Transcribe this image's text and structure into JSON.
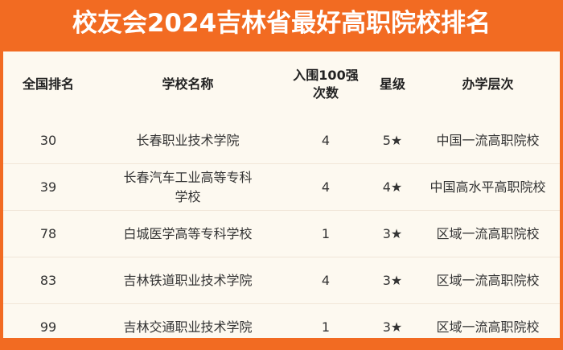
{
  "title": "校友会2024吉林省最好高职院校排名",
  "colors": {
    "header_bg": "#f26b22",
    "panel_bg": "#fdf9f0"
  },
  "columns": [
    "全国排名",
    "学校名称",
    "入围100强次数",
    "星级",
    "办学层次"
  ],
  "rows": [
    {
      "rank": "30",
      "name": "长春职业技术学院",
      "count": "4",
      "stars": "5★",
      "level": "中国一流高职院校"
    },
    {
      "rank": "39",
      "name": "长春汽车工业高等专科学校",
      "count": "4",
      "stars": "4★",
      "level": "中国高水平高职院校"
    },
    {
      "rank": "78",
      "name": "白城医学高等专科学校",
      "count": "1",
      "stars": "3★",
      "level": "区域一流高职院校"
    },
    {
      "rank": "83",
      "name": "吉林铁道职业技术学院",
      "count": "4",
      "stars": "3★",
      "level": "区域一流高职院校"
    },
    {
      "rank": "99",
      "name": "吉林交通职业技术学院",
      "count": "1",
      "stars": "3★",
      "level": "区域一流高职院校"
    }
  ]
}
